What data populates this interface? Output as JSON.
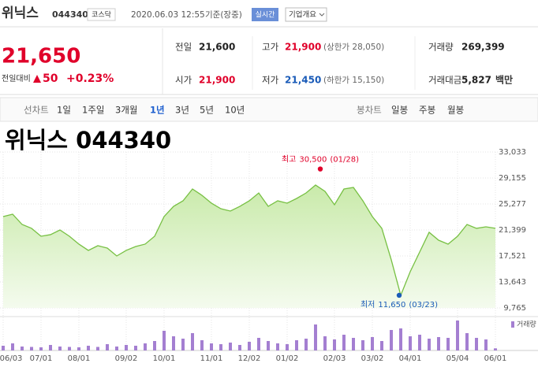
{
  "header": {
    "name": "위닉스",
    "code": "044340",
    "market": "코스닥",
    "datetime": "2020.06.03 12:55",
    "basis": "기준(장중)",
    "realtime": "실시간",
    "company_info": "기업개요"
  },
  "quote": {
    "price": "21,650",
    "change_label": "전일대비",
    "change": "50",
    "change_pct": "+0.23%"
  },
  "stats": [
    {
      "label": "전일",
      "value": "21,600"
    },
    {
      "label": "고가",
      "value": "21,900",
      "note": "(상한가 28,050)"
    },
    {
      "label": "거래량",
      "value": "269,399"
    },
    {
      "label": "시가",
      "value": "21,900"
    },
    {
      "label": "저가",
      "value": "21,450",
      "note": "(하한가 15,150)"
    },
    {
      "label": "거래대금",
      "value": "5,827",
      "unit": "백만"
    }
  ],
  "tabs": {
    "line_label": "선차트",
    "periods": [
      "1일",
      "1주일",
      "3개월",
      "1년",
      "3년",
      "5년",
      "10년"
    ],
    "selected": 3,
    "candle_label": "봉차트",
    "candles": [
      "일봉",
      "주봉",
      "월봉"
    ]
  },
  "chart_data": {
    "type": "area",
    "title": "위닉스 044340",
    "categories": [
      "06/03",
      null,
      null,
      null,
      "07/01",
      null,
      null,
      null,
      "08/01",
      null,
      null,
      null,
      null,
      "09/02",
      null,
      null,
      null,
      "10/01",
      null,
      null,
      null,
      null,
      "11/01",
      null,
      null,
      null,
      "12/02",
      null,
      null,
      null,
      "01/02",
      null,
      null,
      null,
      null,
      "02/03",
      null,
      null,
      null,
      "03/02",
      null,
      null,
      null,
      "04/01",
      null,
      null,
      null,
      null,
      "05/04",
      null,
      null,
      null,
      "06/01"
    ],
    "values": [
      23400,
      23750,
      22220,
      21640,
      20460,
      20700,
      21400,
      20460,
      19290,
      18350,
      19050,
      18700,
      17520,
      18350,
      18930,
      19290,
      20460,
      23400,
      24920,
      25750,
      27510,
      26570,
      25400,
      24570,
      24220,
      24920,
      25750,
      26920,
      24920,
      25750,
      25400,
      26100,
      26920,
      28100,
      27160,
      25160,
      27510,
      27750,
      25750,
      23400,
      21640,
      16940,
      11650,
      15170,
      18110,
      21050,
      19870,
      19290,
      20460,
      22220,
      21640,
      21870,
      21650
    ],
    "color": "#77c043",
    "ylim": [
      9765,
      33033
    ],
    "yticks": [
      {
        "value": 9765,
        "label": "9,765"
      },
      {
        "value": 13643,
        "label": "13,643"
      },
      {
        "value": 17521,
        "label": "17,521"
      },
      {
        "value": 21399,
        "label": "21,399"
      },
      {
        "value": 25277,
        "label": "25,277"
      },
      {
        "value": 29155,
        "label": "29,155"
      },
      {
        "value": 33033,
        "label": "33,033"
      }
    ],
    "grid": true,
    "annotations": [
      {
        "label": "최고",
        "value": 30500,
        "value_label": "30,500",
        "date": "(01/28)",
        "color": "#e0002a"
      },
      {
        "label": "최저",
        "value": 11650,
        "value_label": "11,650",
        "date": "(03/23)",
        "color": "#1a5bb8"
      }
    ],
    "volume": {
      "name": "거래량",
      "color": "#a47fd1",
      "ylim": [
        0,
        4000000
      ],
      "values": [
        600000,
        900000,
        500000,
        450000,
        400000,
        700000,
        500000,
        450000,
        400000,
        600000,
        450000,
        800000,
        500000,
        700000,
        600000,
        900000,
        1200000,
        2500000,
        1800000,
        1500000,
        2200000,
        1300000,
        900000,
        800000,
        1000000,
        700000,
        1100000,
        1600000,
        1200000,
        900000,
        800000,
        1300000,
        1500000,
        3300000,
        1800000,
        1400000,
        2000000,
        1600000,
        1300000,
        1700000,
        1200000,
        2600000,
        2800000,
        1800000,
        2000000,
        1500000,
        1700000,
        1600000,
        3800000,
        2200000,
        1600000,
        1400000,
        269399
      ]
    }
  }
}
